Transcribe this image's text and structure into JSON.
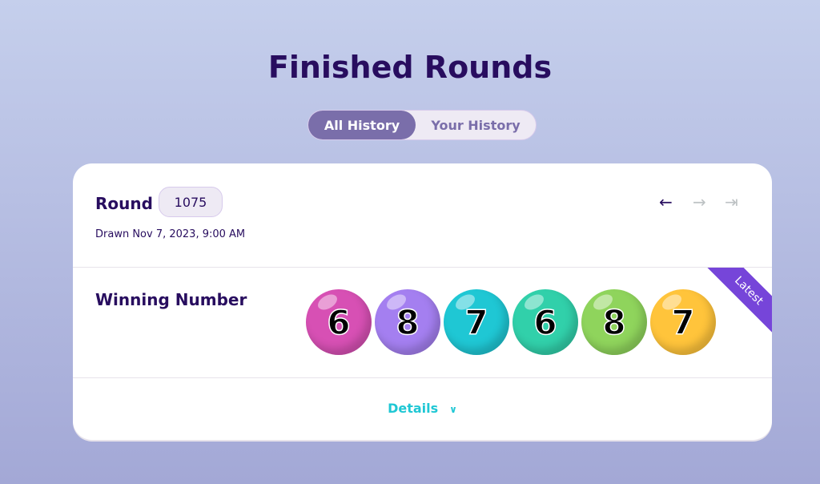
{
  "page": {
    "title": "Finished Rounds"
  },
  "tabs": [
    {
      "label": "All History",
      "active": true
    },
    {
      "label": "Your History",
      "active": false
    }
  ],
  "round": {
    "label": "Round",
    "number": "1075",
    "drawn": "Drawn Nov 7, 2023, 9:00 AM"
  },
  "nav": {
    "prev": "←",
    "next": "→",
    "last": "⇥"
  },
  "winning": {
    "label": "Winning Number",
    "badge": "Latest",
    "balls": [
      {
        "digit": "6",
        "color": "#d750b4"
      },
      {
        "digit": "8",
        "color": "#a47ff0"
      },
      {
        "digit": "7",
        "color": "#1fc7d4"
      },
      {
        "digit": "6",
        "color": "#31d0aa"
      },
      {
        "digit": "8",
        "color": "#8fd45c"
      },
      {
        "digit": "7",
        "color": "#ffc43b"
      }
    ]
  },
  "details": {
    "label": "Details",
    "icon": "chevron-down-icon"
  }
}
